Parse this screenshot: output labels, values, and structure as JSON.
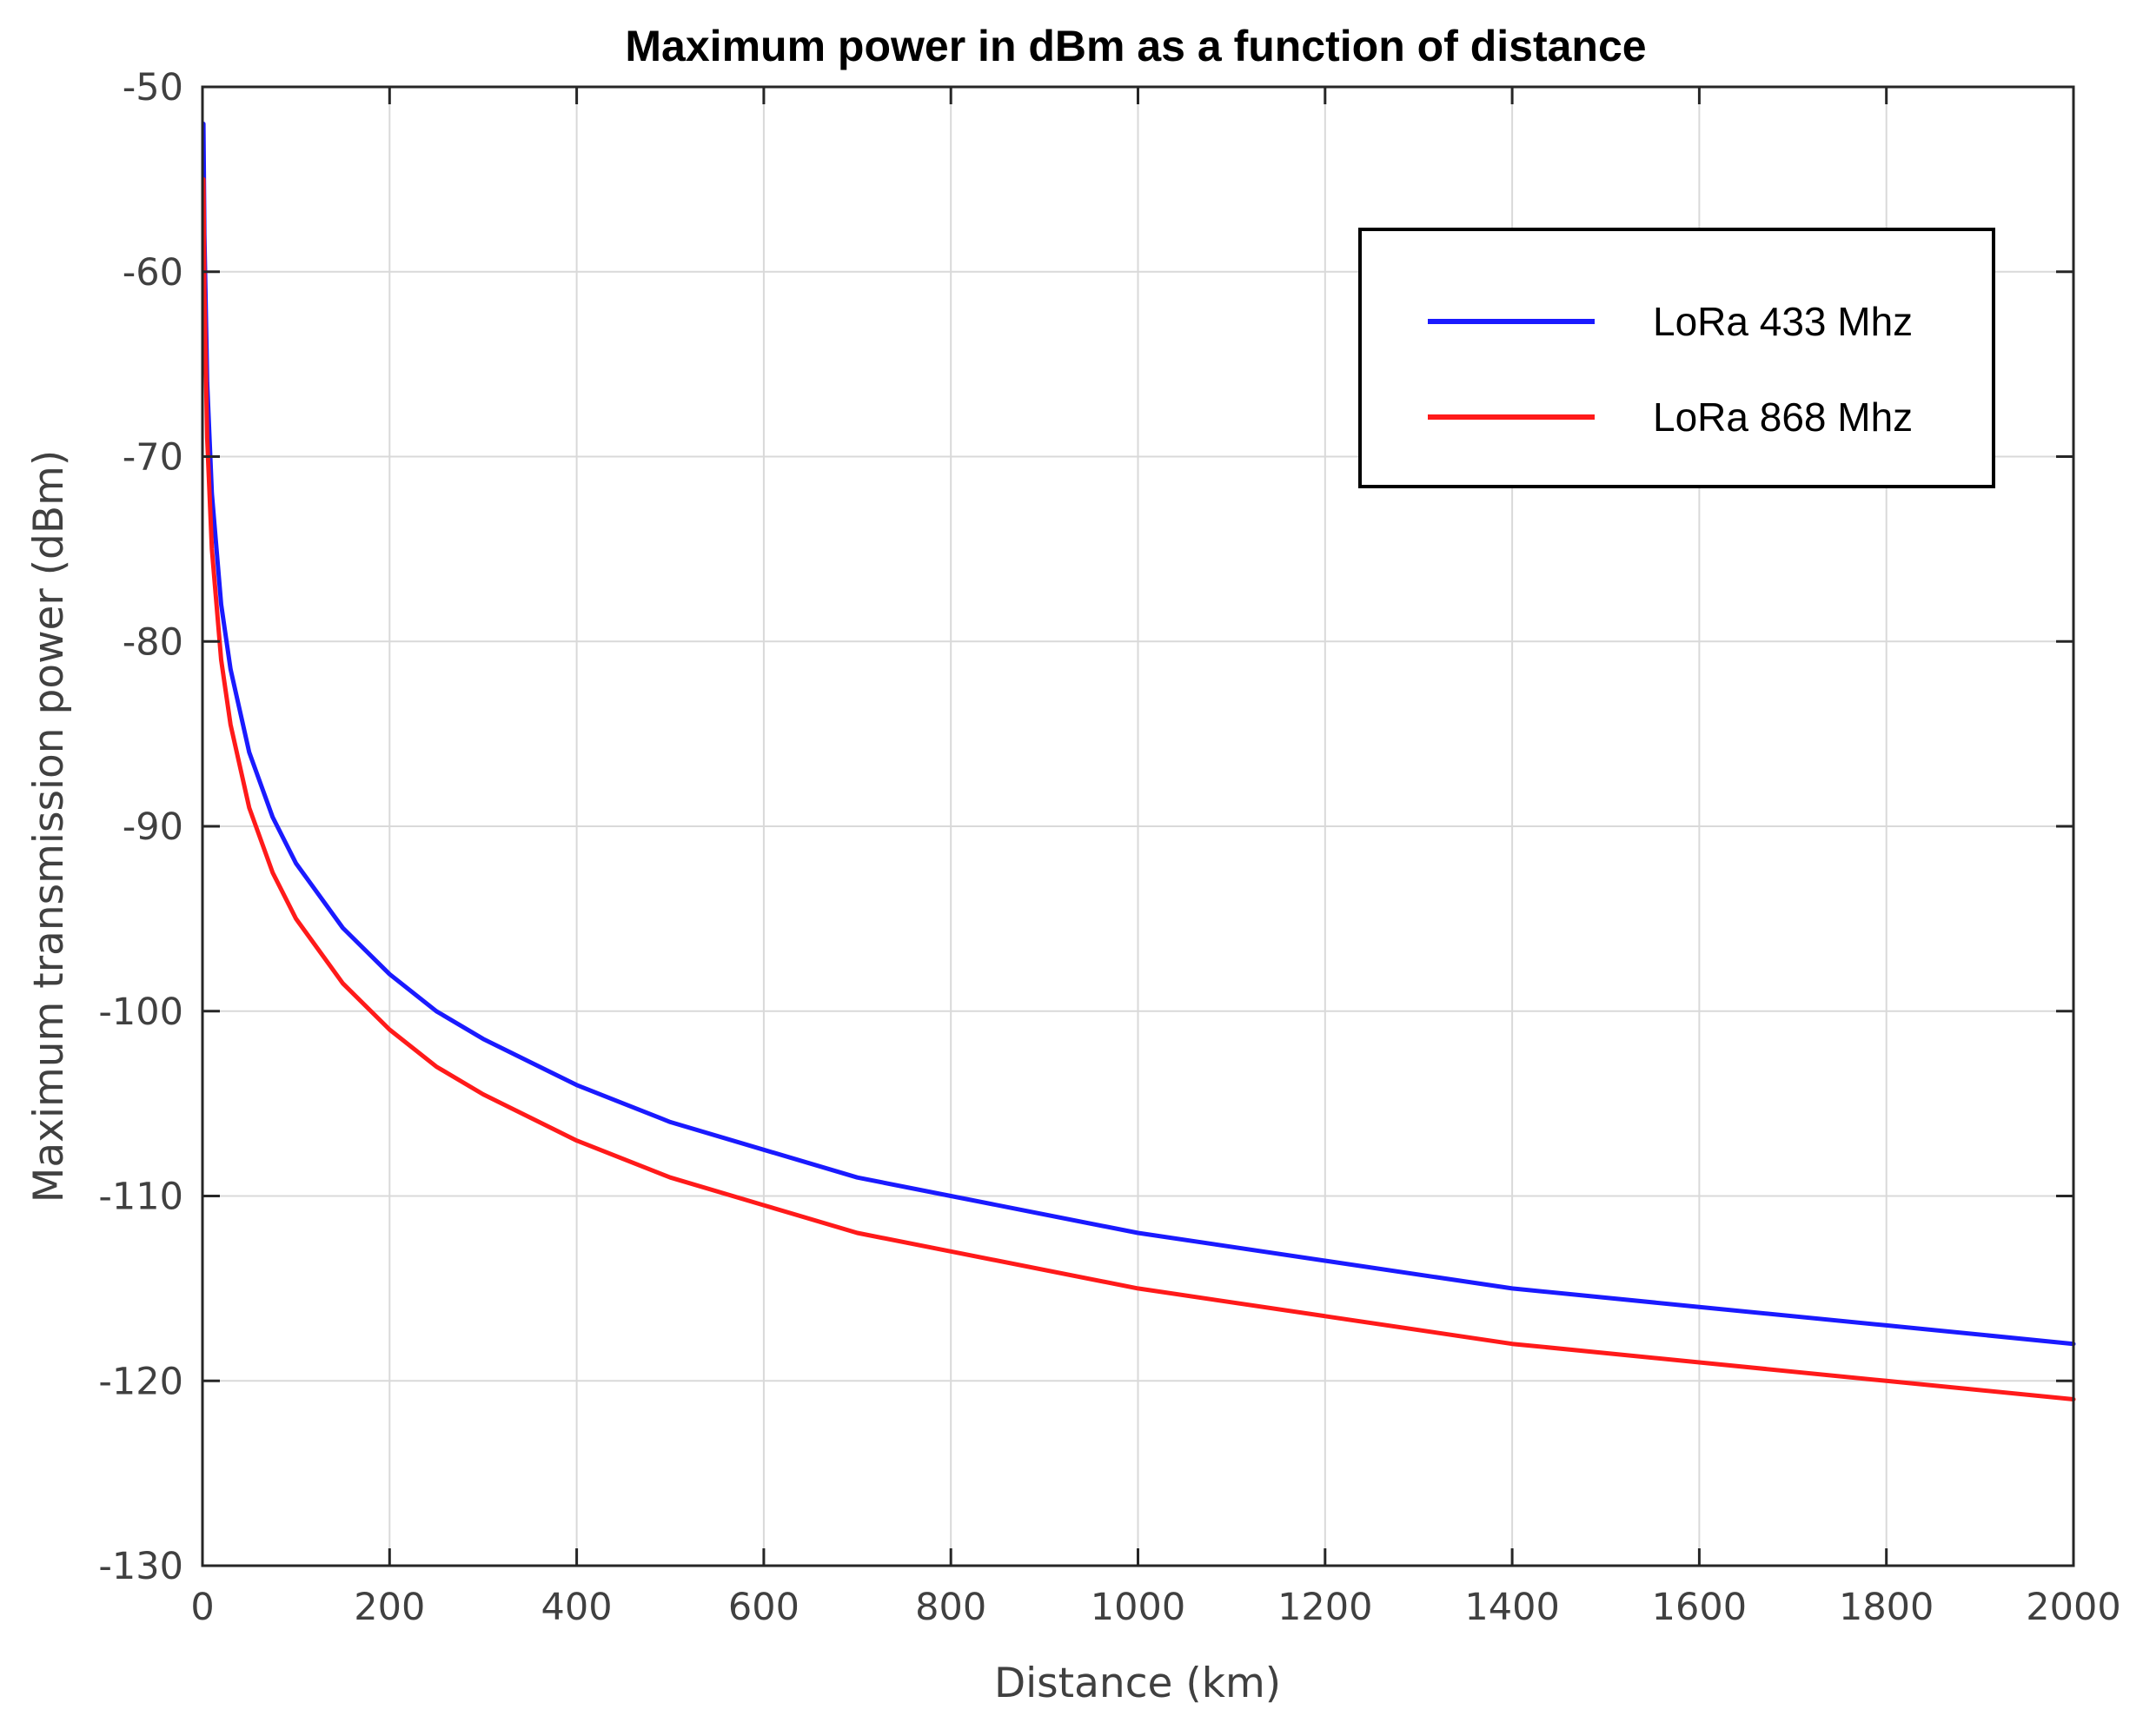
{
  "chart_data": {
    "type": "line",
    "title": "Maximum power in dBm as a function of distance",
    "xlabel": "Distance (km)",
    "ylabel": "Maximum transmission power (dBm)",
    "xlim": [
      0,
      2000
    ],
    "ylim": [
      -130,
      -50
    ],
    "xticks": [
      0,
      200,
      400,
      600,
      800,
      1000,
      1200,
      1400,
      1600,
      1800,
      2000
    ],
    "yticks": [
      -50,
      -60,
      -70,
      -80,
      -90,
      -100,
      -110,
      -120,
      -130
    ],
    "grid": true,
    "legend_position": "top-right",
    "series": [
      {
        "name": "LoRa 433 Mhz",
        "color": "#1a1aff",
        "x": [
          1,
          2,
          5,
          10,
          20,
          30,
          50,
          75,
          100,
          150,
          200,
          250,
          300,
          400,
          500,
          600,
          700,
          800,
          1000,
          1200,
          1400,
          1600,
          1800,
          2000
        ],
        "y": [
          -52,
          -58,
          -66,
          -72,
          -78,
          -81.5,
          -86,
          -89.5,
          -92,
          -95.5,
          -98,
          -100,
          -101.5,
          -104,
          -106,
          -107.5,
          -109,
          -110,
          -112,
          -113.5,
          -115,
          -116,
          -117,
          -118
        ]
      },
      {
        "name": "LoRa 868 Mhz",
        "color": "#ff1a1a",
        "x": [
          1,
          2,
          5,
          10,
          20,
          30,
          50,
          75,
          100,
          150,
          200,
          250,
          300,
          400,
          500,
          600,
          700,
          800,
          1000,
          1200,
          1400,
          1600,
          1800,
          2000
        ],
        "y": [
          -55,
          -61,
          -69,
          -75,
          -81,
          -84.5,
          -89,
          -92.5,
          -95,
          -98.5,
          -101,
          -103,
          -104.5,
          -107,
          -109,
          -110.5,
          -112,
          -113,
          -115,
          -116.5,
          -118,
          -119,
          -120,
          -121
        ]
      }
    ]
  }
}
